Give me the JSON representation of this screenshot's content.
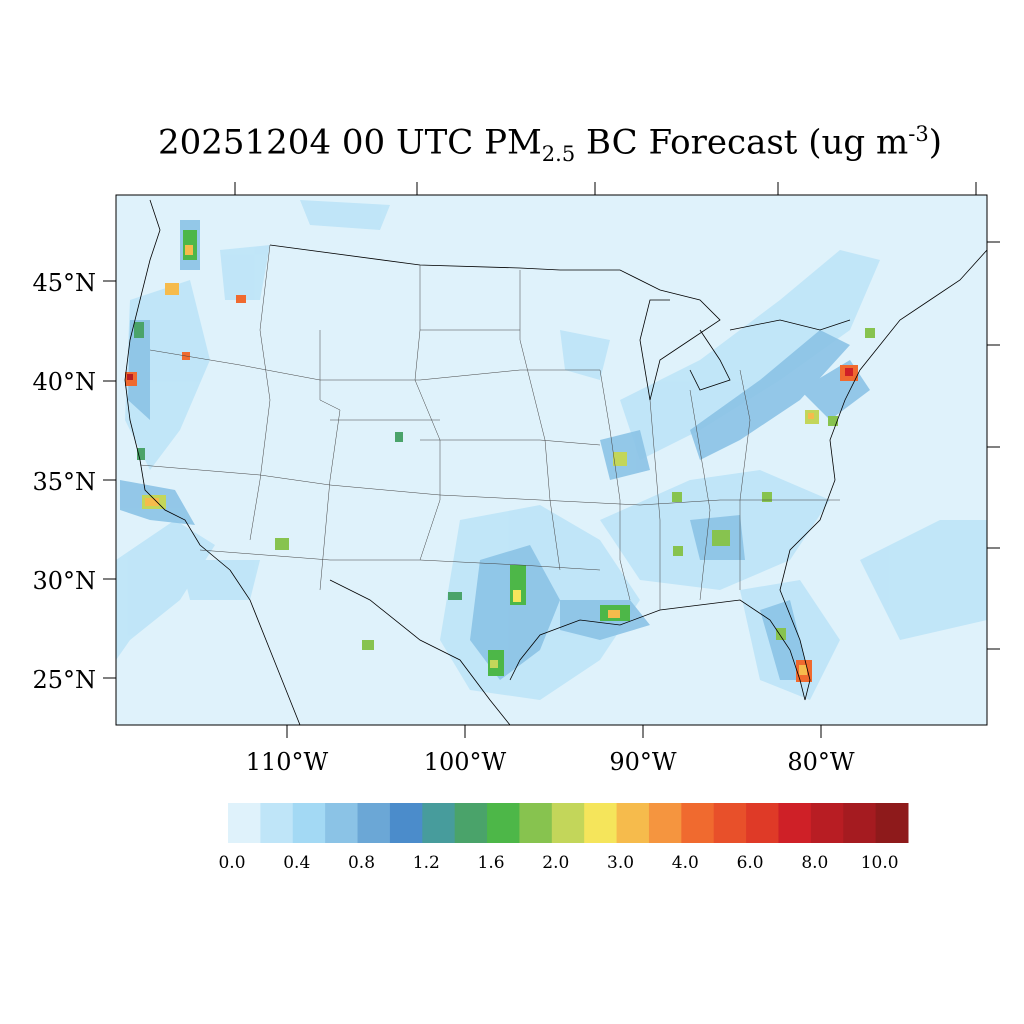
{
  "title": {
    "prefix": "20251204 00 UTC PM",
    "subscript": "2.5",
    "middle": " BC Forecast (ug m",
    "superscript": "-3",
    "suffix": ")"
  },
  "map": {
    "lat_labels": [
      "45°N",
      "40°N",
      "35°N",
      "30°N",
      "25°N"
    ],
    "lon_labels": [
      "110°W",
      "100°W",
      "90°W",
      "80°W"
    ],
    "background_color": "#dff2fb"
  },
  "colorbar": {
    "colors": [
      "#dff2fb",
      "#bfe5f8",
      "#a3d9f4",
      "#8bc3e6",
      "#6ba7d6",
      "#4b8ccb",
      "#479c9c",
      "#4aa36a",
      "#4db748",
      "#87c34f",
      "#c3d65a",
      "#f5e55b",
      "#f6bb4c",
      "#f5953f",
      "#f06a2f",
      "#e8502a",
      "#df3a27",
      "#cf2027",
      "#b81d23",
      "#a51b20",
      "#8e1a1b"
    ],
    "labels": [
      "0.0",
      "0.4",
      "0.8",
      "1.2",
      "1.6",
      "2.0",
      "3.0",
      "4.0",
      "6.0",
      "8.0",
      "10.0"
    ]
  }
}
